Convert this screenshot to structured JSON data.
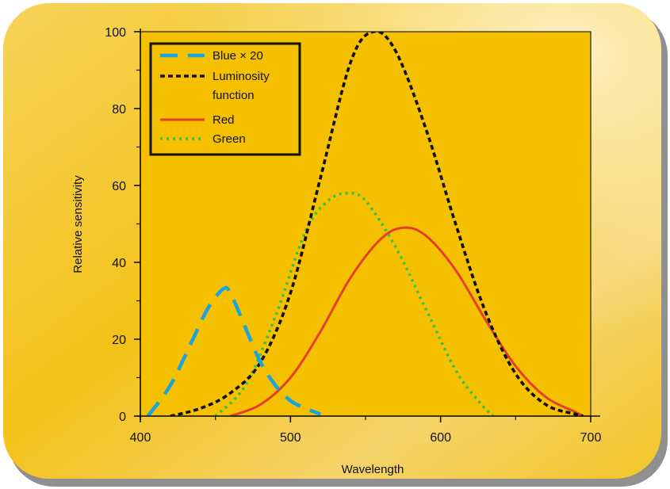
{
  "chart_data": {
    "type": "line",
    "title": "",
    "xlabel": "Wavelength",
    "ylabel": "Relative sensitivity",
    "xlim": [
      400,
      700
    ],
    "ylim": [
      0,
      100
    ],
    "xticks": [
      400,
      500,
      600,
      700
    ],
    "xtick_labels": [
      "400",
      "500",
      "600",
      "700"
    ],
    "yticks": [
      0,
      20,
      40,
      60,
      80,
      100
    ],
    "ytick_labels": [
      "0",
      "20",
      "40",
      "60",
      "80",
      "100"
    ],
    "grid": false,
    "legend_position": "top-left",
    "colors": {
      "frame_background": "#f2c200",
      "frame_highlight": "#fbe7a3",
      "plot_background": "#f5c000",
      "axis": "#111111"
    },
    "series": [
      {
        "name": "Blue × 20",
        "color": "#1aa4de",
        "style": "dashed",
        "x": [
          405,
          420,
          435,
          445,
          455,
          460,
          470,
          480,
          490,
          500,
          510,
          520
        ],
        "y": [
          0,
          8,
          20,
          28,
          33,
          32,
          23,
          14,
          8,
          4,
          2,
          0.5
        ]
      },
      {
        "name": "Luminosity function",
        "color": "#111111",
        "style": "dotted-dense",
        "x": [
          420,
          440,
          460,
          480,
          500,
          520,
          540,
          555,
          570,
          590,
          610,
          630,
          650,
          670,
          690,
          695
        ],
        "y": [
          0,
          2,
          6,
          14,
          32,
          62,
          92,
          100,
          95,
          75,
          50,
          27,
          11,
          3,
          0.5,
          0
        ]
      },
      {
        "name": "Red",
        "color": "#e2412b",
        "style": "solid",
        "x": [
          460,
          480,
          500,
          520,
          540,
          560,
          575,
          590,
          610,
          630,
          650,
          670,
          690,
          695
        ],
        "y": [
          0,
          3,
          10,
          22,
          36,
          46,
          49,
          47,
          38,
          25,
          13,
          5,
          1,
          0
        ]
      },
      {
        "name": "Green",
        "color": "#3bbf4a",
        "style": "dotted",
        "x": [
          450,
          470,
          490,
          510,
          525,
          538,
          550,
          570,
          590,
          610,
          625,
          635
        ],
        "y": [
          0,
          8,
          26,
          48,
          56,
          58,
          56,
          44,
          28,
          12,
          4,
          0
        ]
      }
    ],
    "legend": {
      "entries": [
        {
          "series": 0,
          "lines": [
            "Blue × 20"
          ]
        },
        {
          "series": 1,
          "lines": [
            "Luminosity",
            "function"
          ]
        },
        {
          "series": 2,
          "lines": [
            "Red"
          ]
        },
        {
          "series": 3,
          "lines": [
            "Green"
          ]
        }
      ]
    }
  }
}
